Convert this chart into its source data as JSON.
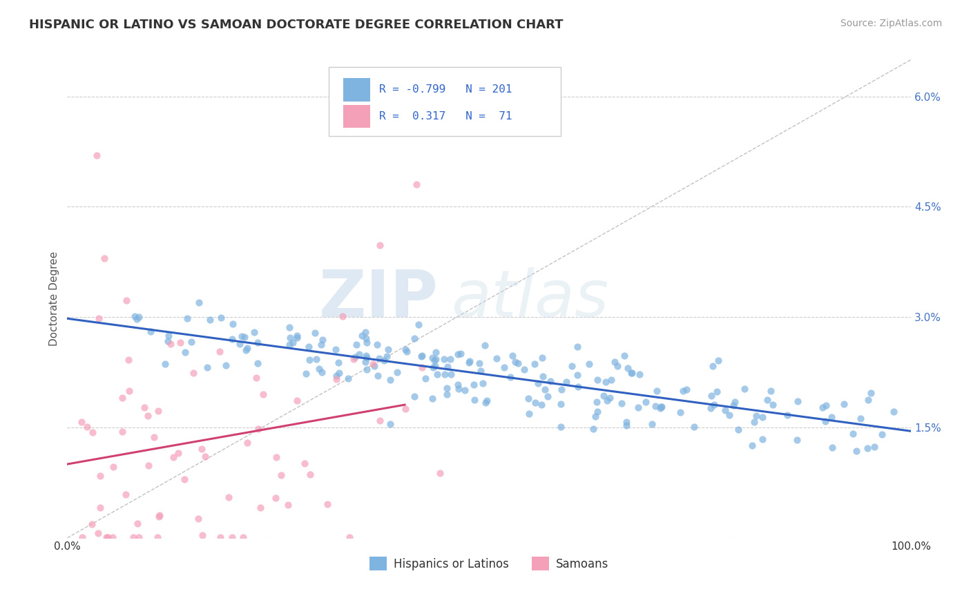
{
  "title": "HISPANIC OR LATINO VS SAMOAN DOCTORATE DEGREE CORRELATION CHART",
  "source": "Source: ZipAtlas.com",
  "ylabel_label": "Doctorate Degree",
  "x_min": 0.0,
  "x_max": 1.0,
  "y_min": 0.0,
  "y_max": 0.065,
  "x_ticks": [
    0.0,
    0.1,
    0.2,
    0.3,
    0.4,
    0.5,
    0.6,
    0.7,
    0.8,
    0.9,
    1.0
  ],
  "y_ticks": [
    0.0,
    0.015,
    0.03,
    0.045,
    0.06
  ],
  "y_tick_labels": [
    "",
    "1.5%",
    "3.0%",
    "4.5%",
    "6.0%"
  ],
  "blue_color": "#7fb3e0",
  "pink_color": "#f4a0b8",
  "blue_line_color": "#3060c0",
  "pink_line_color": "#d04070",
  "diagonal_color": "#bbbbbb",
  "watermark_ZIP": "ZIP",
  "watermark_atlas": "atlas",
  "legend_R_blue": "-0.799",
  "legend_N_blue": "201",
  "legend_R_pink": "0.317",
  "legend_N_pink": "71",
  "legend_label_blue": "Hispanics or Latinos",
  "legend_label_pink": "Samoans",
  "background_color": "#ffffff",
  "grid_color": "#cccccc",
  "title_color": "#333333",
  "source_color": "#999999",
  "ylabel_color": "#555555",
  "tick_color": "#4472c4"
}
